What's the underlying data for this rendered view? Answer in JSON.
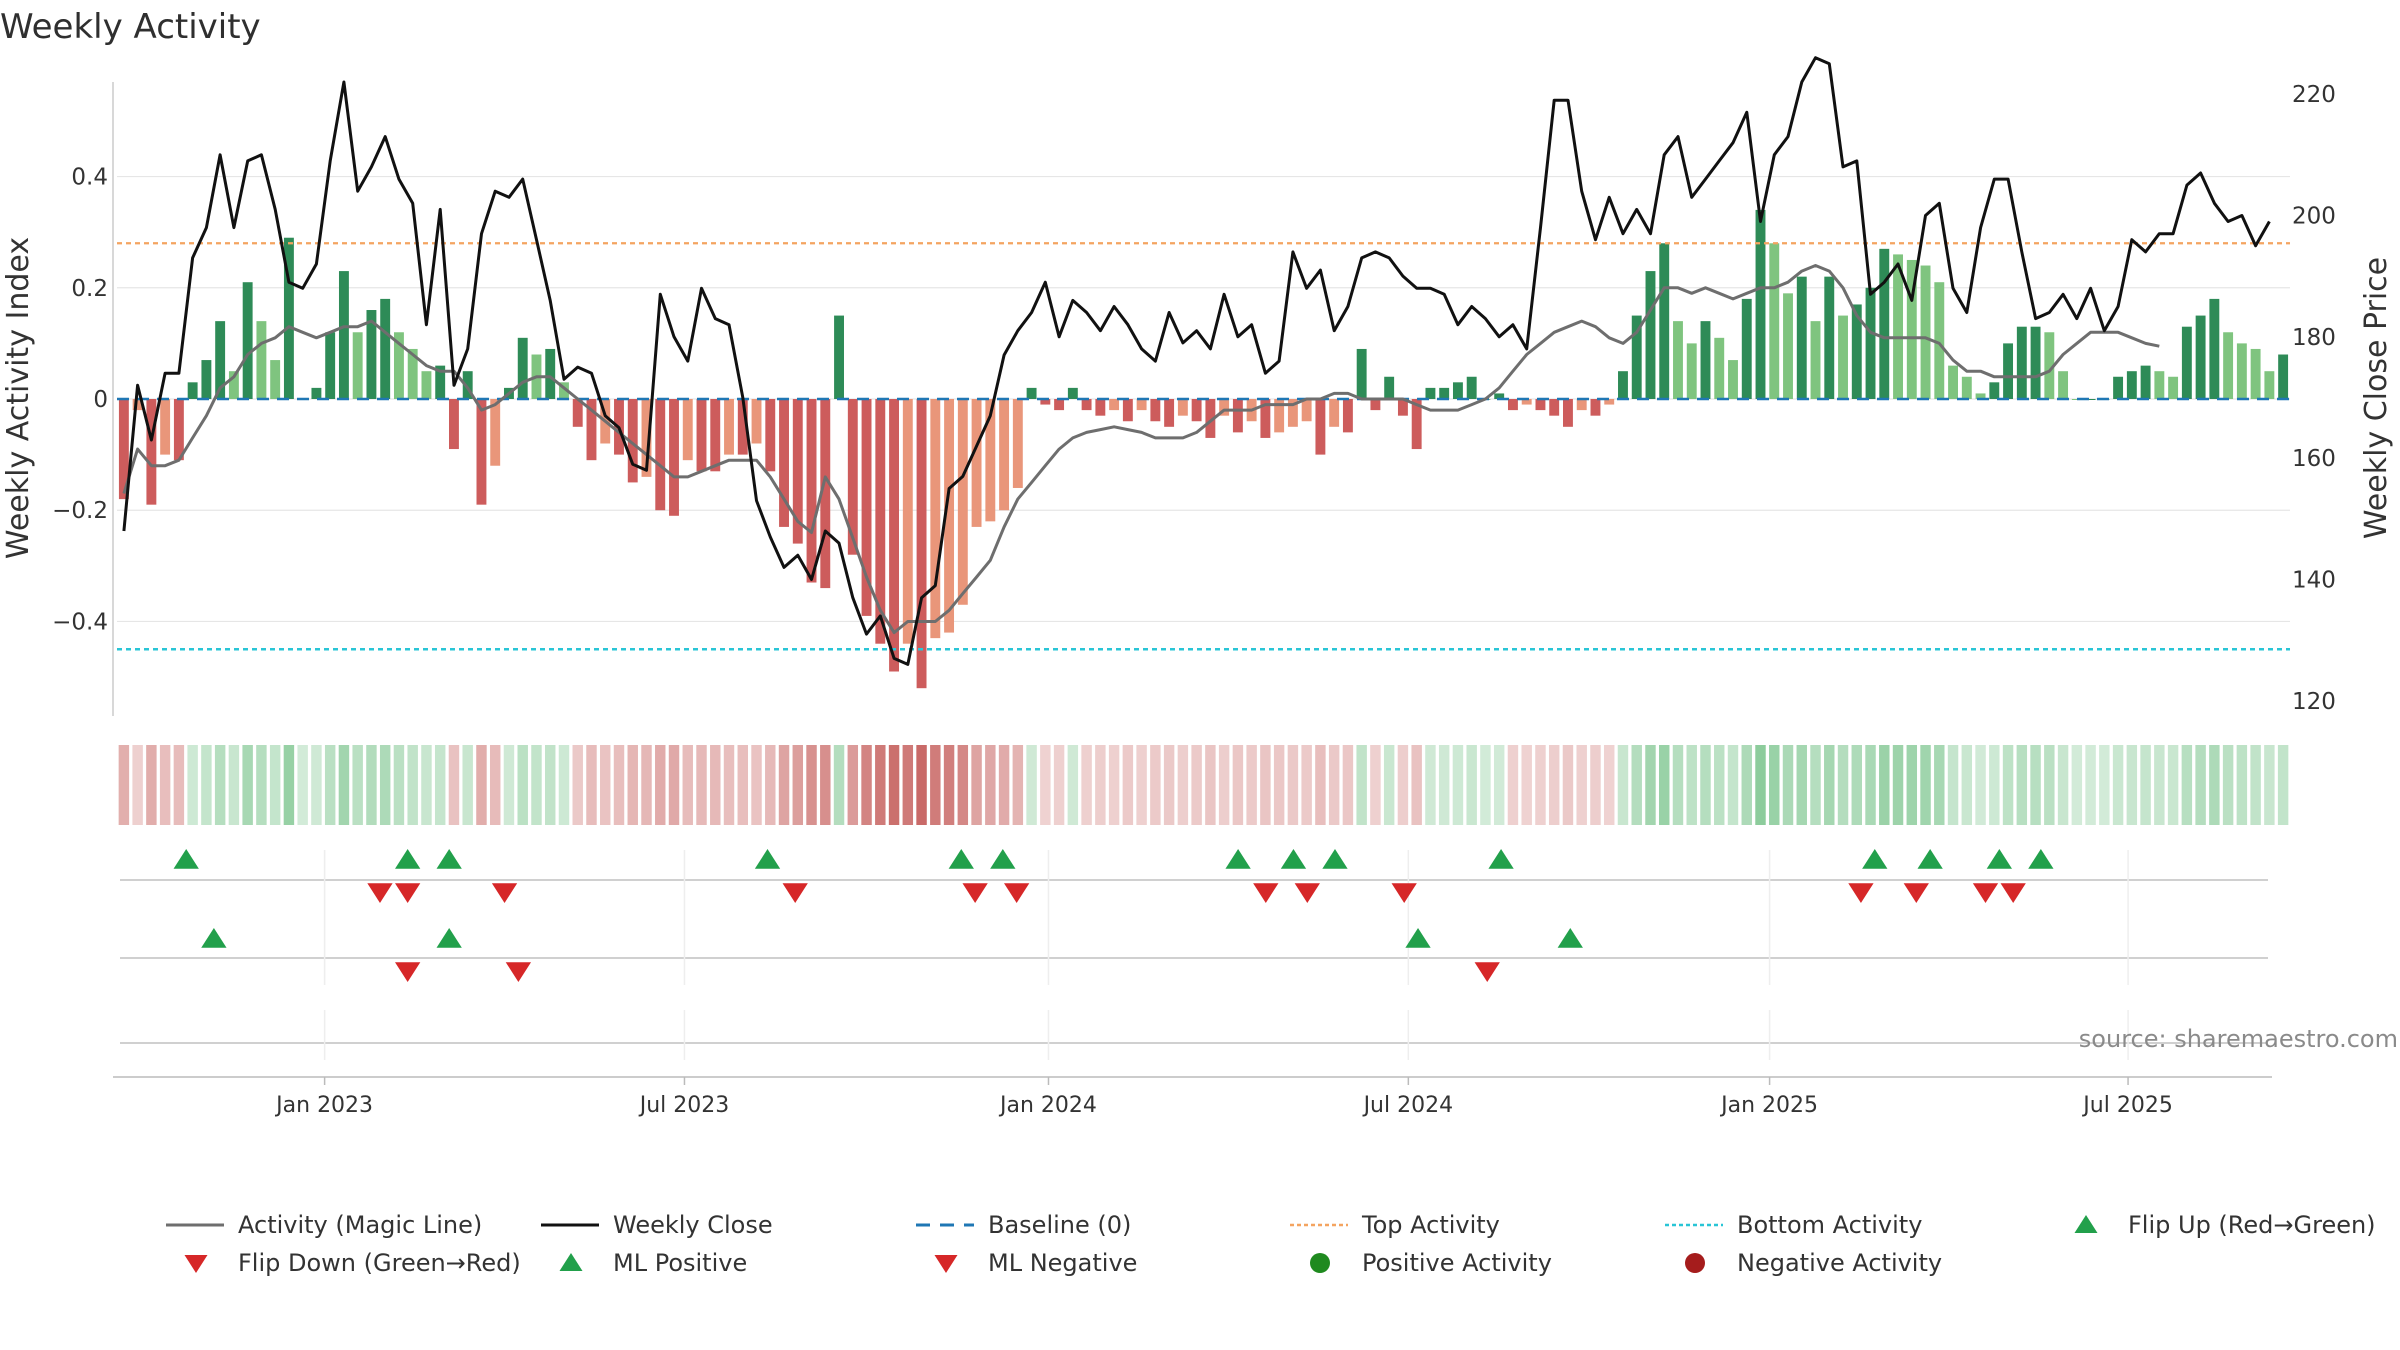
{
  "chart_data": {
    "type": "bar",
    "title": "Weekly Activity",
    "ylabel_left": "Weekly Activity Index",
    "ylabel_right": "Weekly Close Price",
    "ylim_left": [
      -0.57,
      0.57
    ],
    "ylim_right": [
      117.5,
      222
    ],
    "yticks_left": [
      {
        "value": 0.4,
        "label": "0.4"
      },
      {
        "value": 0.2,
        "label": "0.2"
      },
      {
        "value": 0,
        "label": "0"
      },
      {
        "value": -0.2,
        "label": "−0.2"
      },
      {
        "value": -0.4,
        "label": "−0.4"
      }
    ],
    "yticks_right": [
      {
        "value": 220,
        "label": "220"
      },
      {
        "value": 200,
        "label": "200"
      },
      {
        "value": 180,
        "label": "180"
      },
      {
        "value": 160,
        "label": "160"
      },
      {
        "value": 140,
        "label": "140"
      },
      {
        "value": 120,
        "label": "120"
      }
    ],
    "x_start_week": -15,
    "x_end_week": 142,
    "xticks": [
      {
        "week": 0,
        "label": "Jan 2023"
      },
      {
        "week": 26,
        "label": "Jul 2023"
      },
      {
        "week": 52.3,
        "label": "Jan 2024"
      },
      {
        "week": 78.3,
        "label": "Jul 2024"
      },
      {
        "week": 104.4,
        "label": "Jan 2025"
      },
      {
        "week": 130.3,
        "label": "Jul 2025"
      }
    ],
    "top_activity": 0.28,
    "bottom_activity": -0.45,
    "activity": [
      -0.18,
      -0.02,
      -0.19,
      -0.1,
      -0.11,
      0.03,
      0.07,
      0.14,
      0.05,
      0.21,
      0.14,
      0.07,
      0.29,
      0,
      0.02,
      0.12,
      0.23,
      0.12,
      0.16,
      0.18,
      0.12,
      0.09,
      0.05,
      0.06,
      -0.09,
      0.05,
      -0.19,
      -0.12,
      0.02,
      0.11,
      0.08,
      0.09,
      0.03,
      -0.05,
      -0.11,
      -0.08,
      -0.1,
      -0.15,
      -0.14,
      -0.2,
      -0.21,
      -0.11,
      -0.13,
      -0.13,
      -0.1,
      -0.1,
      -0.08,
      -0.13,
      -0.23,
      -0.26,
      -0.33,
      -0.34,
      0.15,
      -0.28,
      -0.39,
      -0.44,
      -0.49,
      -0.44,
      -0.52,
      -0.43,
      -0.42,
      -0.37,
      -0.23,
      -0.22,
      -0.2,
      -0.16,
      0.02,
      -0.01,
      -0.02,
      0.02,
      -0.02,
      -0.03,
      -0.02,
      -0.04,
      -0.02,
      -0.04,
      -0.05,
      -0.03,
      -0.04,
      -0.07,
      -0.03,
      -0.06,
      -0.04,
      -0.07,
      -0.06,
      -0.05,
      -0.04,
      -0.1,
      -0.05,
      -0.06,
      0.09,
      -0.02,
      0.04,
      -0.03,
      -0.09,
      0.02,
      0.02,
      0.03,
      0.04,
      0,
      0.01,
      -0.02,
      -0.01,
      -0.02,
      -0.03,
      -0.05,
      -0.02,
      -0.03,
      -0.01,
      0.05,
      0.15,
      0.23,
      0.28,
      0.14,
      0.1,
      0.14,
      0.11,
      0.07,
      0.18,
      0.34,
      0.28,
      0.19,
      0.22,
      0.14,
      0.22,
      0.15,
      0.17,
      0.2,
      0.27,
      0.26,
      0.25,
      0.24,
      0.21,
      0.06,
      0.04,
      0.01,
      0.03,
      0.1,
      0.13,
      0.13,
      0.12,
      0.05,
      0,
      0,
      0,
      0.04,
      0.05,
      0.06,
      0.05,
      0.04,
      0.13,
      0.15,
      0.18,
      0.12,
      0.1,
      0.09,
      0.05,
      0.08
    ],
    "magic_line": [
      -0.17,
      -0.09,
      -0.12,
      -0.12,
      -0.11,
      -0.07,
      -0.03,
      0.02,
      0.04,
      0.08,
      0.1,
      0.11,
      0.13,
      0.12,
      0.11,
      0.12,
      0.13,
      0.13,
      0.14,
      0.12,
      0.1,
      0.08,
      0.06,
      0.05,
      0.05,
      0.02,
      -0.02,
      -0.01,
      0.01,
      0.03,
      0.04,
      0.04,
      0.02,
      0,
      -0.02,
      -0.04,
      -0.06,
      -0.08,
      -0.1,
      -0.12,
      -0.14,
      -0.14,
      -0.13,
      -0.12,
      -0.11,
      -0.11,
      -0.11,
      -0.14,
      -0.18,
      -0.22,
      -0.24,
      -0.14,
      -0.18,
      -0.25,
      -0.32,
      -0.38,
      -0.42,
      -0.4,
      -0.4,
      -0.4,
      -0.38,
      -0.35,
      -0.32,
      -0.29,
      -0.23,
      -0.18,
      -0.15,
      -0.12,
      -0.09,
      -0.07,
      -0.06,
      -0.055,
      -0.05,
      -0.055,
      -0.06,
      -0.07,
      -0.07,
      -0.07,
      -0.06,
      -0.04,
      -0.02,
      -0.02,
      -0.02,
      -0.01,
      -0.01,
      -0.01,
      0,
      0,
      0.01,
      0.01,
      0,
      0,
      0,
      0,
      -0.01,
      -0.02,
      -0.02,
      -0.02,
      -0.01,
      0,
      0.02,
      0.05,
      0.08,
      0.1,
      0.12,
      0.13,
      0.14,
      0.13,
      0.11,
      0.1,
      0.12,
      0.16,
      0.2,
      0.2,
      0.19,
      0.2,
      0.19,
      0.18,
      0.19,
      0.2,
      0.2,
      0.21,
      0.23,
      0.24,
      0.23,
      0.2,
      0.15,
      0.12,
      0.11,
      0.11,
      0.11,
      0.11,
      0.1,
      0.07,
      0.05,
      0.05,
      0.04,
      0.04,
      0.04,
      0.04,
      0.05,
      0.08,
      0.1,
      0.12,
      0.12,
      0.12,
      0.11,
      0.1,
      0.095
    ],
    "weekly_close": [
      148,
      172,
      163,
      174,
      174,
      193,
      198,
      210,
      198,
      209,
      210,
      201,
      189,
      188,
      192,
      209,
      222,
      204,
      208,
      213,
      206,
      202,
      182,
      201,
      172,
      178,
      197,
      204,
      203,
      206,
      196,
      186,
      173,
      175,
      174,
      167,
      165,
      159,
      158,
      187,
      180,
      176,
      188,
      183,
      182,
      170,
      153,
      147,
      142,
      144,
      140,
      148,
      146,
      137,
      131,
      134,
      127,
      126,
      137,
      139,
      155,
      157,
      162,
      167,
      177,
      181,
      184,
      189,
      180,
      186,
      184,
      181,
      185,
      182,
      178,
      176,
      184,
      179,
      181,
      178,
      187,
      180,
      182,
      174,
      176,
      194,
      188,
      191,
      181,
      185,
      193,
      194,
      193,
      190,
      188,
      188,
      187,
      182,
      185,
      183,
      180,
      182,
      178,
      198,
      219,
      219,
      204,
      196,
      203,
      197,
      201,
      197,
      210,
      213,
      203,
      206,
      209,
      212,
      217,
      199,
      210,
      213,
      222,
      226,
      225,
      208,
      209,
      187,
      189,
      192,
      186,
      200,
      202,
      188,
      184,
      198,
      206,
      206,
      194,
      183,
      184,
      187,
      183,
      188,
      181,
      185,
      196,
      194,
      197,
      197,
      205,
      207,
      202,
      199,
      200,
      195,
      199
    ],
    "ml_positive_row": {
      "flip_up_weeks": [
        -10,
        6,
        9,
        32,
        46,
        49,
        66,
        70,
        73,
        85,
        112,
        116,
        121,
        124
      ],
      "flip_down_weeks": [
        4,
        6,
        13,
        34,
        47,
        50,
        68,
        71,
        78,
        111,
        115,
        120,
        122
      ]
    },
    "ml_negative_row": {
      "up_weeks": [
        -8,
        9,
        79,
        90
      ],
      "down_weeks": [
        6,
        14,
        84
      ]
    },
    "source": "source: sharemaestro.com",
    "legend": [
      {
        "label": "Activity (Magic Line)",
        "style": "line-gray"
      },
      {
        "label": "Weekly Close",
        "style": "line-black"
      },
      {
        "label": "Baseline (0)",
        "style": "dash-blue"
      },
      {
        "label": "Top Activity",
        "style": "dot-orange"
      },
      {
        "label": "Bottom Activity",
        "style": "dot-cyan"
      },
      {
        "label": "Flip Up (Red→Green)",
        "style": "tri-up-green"
      },
      {
        "label": "Flip Down (Green→Red)",
        "style": "tri-down-red"
      },
      {
        "label": "ML Positive",
        "style": "tri-up-green"
      },
      {
        "label": "ML Negative",
        "style": "tri-down-red"
      },
      {
        "label": "Positive Activity",
        "style": "circle-green"
      },
      {
        "label": "Negative Activity",
        "style": "circle-red"
      }
    ],
    "colors": {
      "pos_strong": "#2e8b57",
      "pos_light": "#7fc47f",
      "neg_strong": "#cd5c5c",
      "neg_light": "#e9967a",
      "magic_line": "#6e6e6e",
      "close": "#111111",
      "baseline": "#1f77b4",
      "top": "#f4a460",
      "bottom": "#29c5d6",
      "tri_up": "#22a04b",
      "tri_down": "#d62728",
      "circle_green": "#1f8a1f",
      "circle_red": "#a51c1c",
      "grid": "#e6e6e6",
      "axis_line": "#cccccc"
    }
  }
}
